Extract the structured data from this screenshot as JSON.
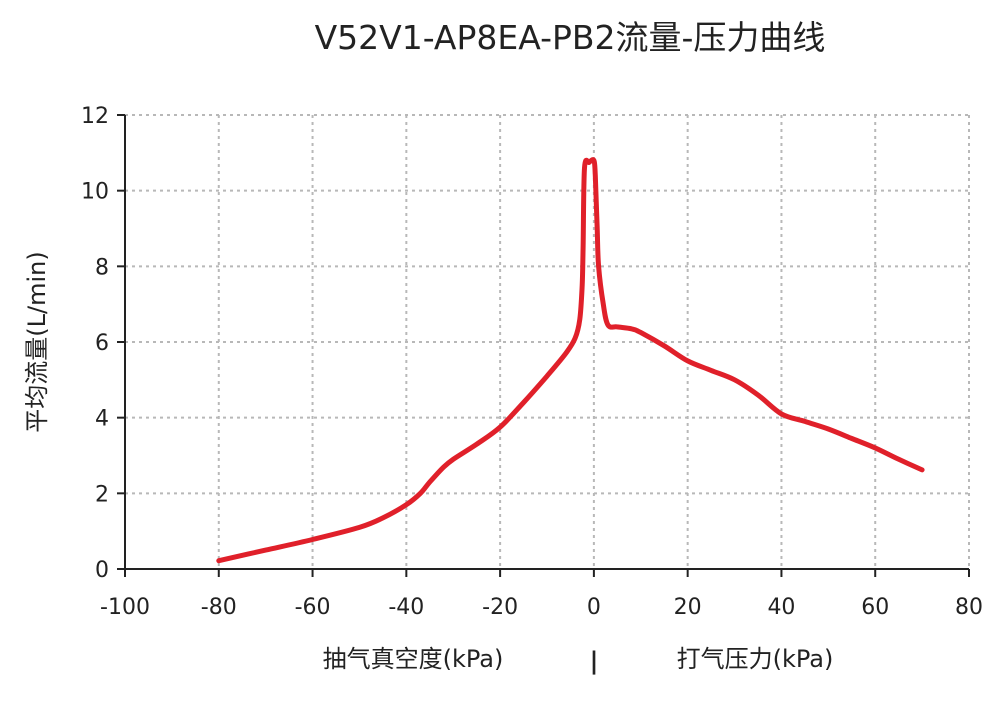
{
  "chart_data": {
    "type": "line",
    "title": "V52V1-AP8EA-PB2流量-压力曲线",
    "ylabel": "平均流量(L/min)",
    "xlabel_left": "抽气真空度(kPa)",
    "xlabel_separator": "|",
    "xlabel_right": "打气压力(kPa)",
    "xlim": [
      -100,
      80
    ],
    "ylim": [
      0,
      12
    ],
    "x_ticks": [
      "-100",
      "-80",
      "-60",
      "-40",
      "-20",
      "0",
      "20",
      "40",
      "60",
      "80"
    ],
    "y_ticks": [
      "0",
      "2",
      "4",
      "6",
      "8",
      "10",
      "12"
    ],
    "grid": true,
    "line_color": "#e0202a",
    "series": [
      {
        "x": [
          -80,
          -70,
          -60,
          -50,
          -45,
          -40,
          -37,
          -35,
          -32,
          -30,
          -25,
          -20,
          -15,
          -10,
          -6,
          -4,
          -3,
          -2.5,
          -2.3,
          -2,
          -1,
          0,
          0.3,
          0.7,
          1,
          2,
          3,
          5,
          8,
          10,
          15,
          20,
          25,
          30,
          35,
          40,
          45,
          50,
          55,
          60,
          65,
          70
        ],
        "y": [
          0.22,
          0.5,
          0.78,
          1.1,
          1.35,
          1.7,
          2.0,
          2.3,
          2.7,
          2.9,
          3.3,
          3.75,
          4.4,
          5.1,
          5.7,
          6.1,
          6.6,
          7.5,
          8.5,
          10.6,
          10.75,
          10.8,
          10.4,
          9.0,
          8.0,
          7.0,
          6.45,
          6.4,
          6.35,
          6.25,
          5.9,
          5.5,
          5.25,
          5.0,
          4.6,
          4.1,
          3.9,
          3.7,
          3.45,
          3.2,
          2.9,
          2.62
        ]
      }
    ]
  }
}
